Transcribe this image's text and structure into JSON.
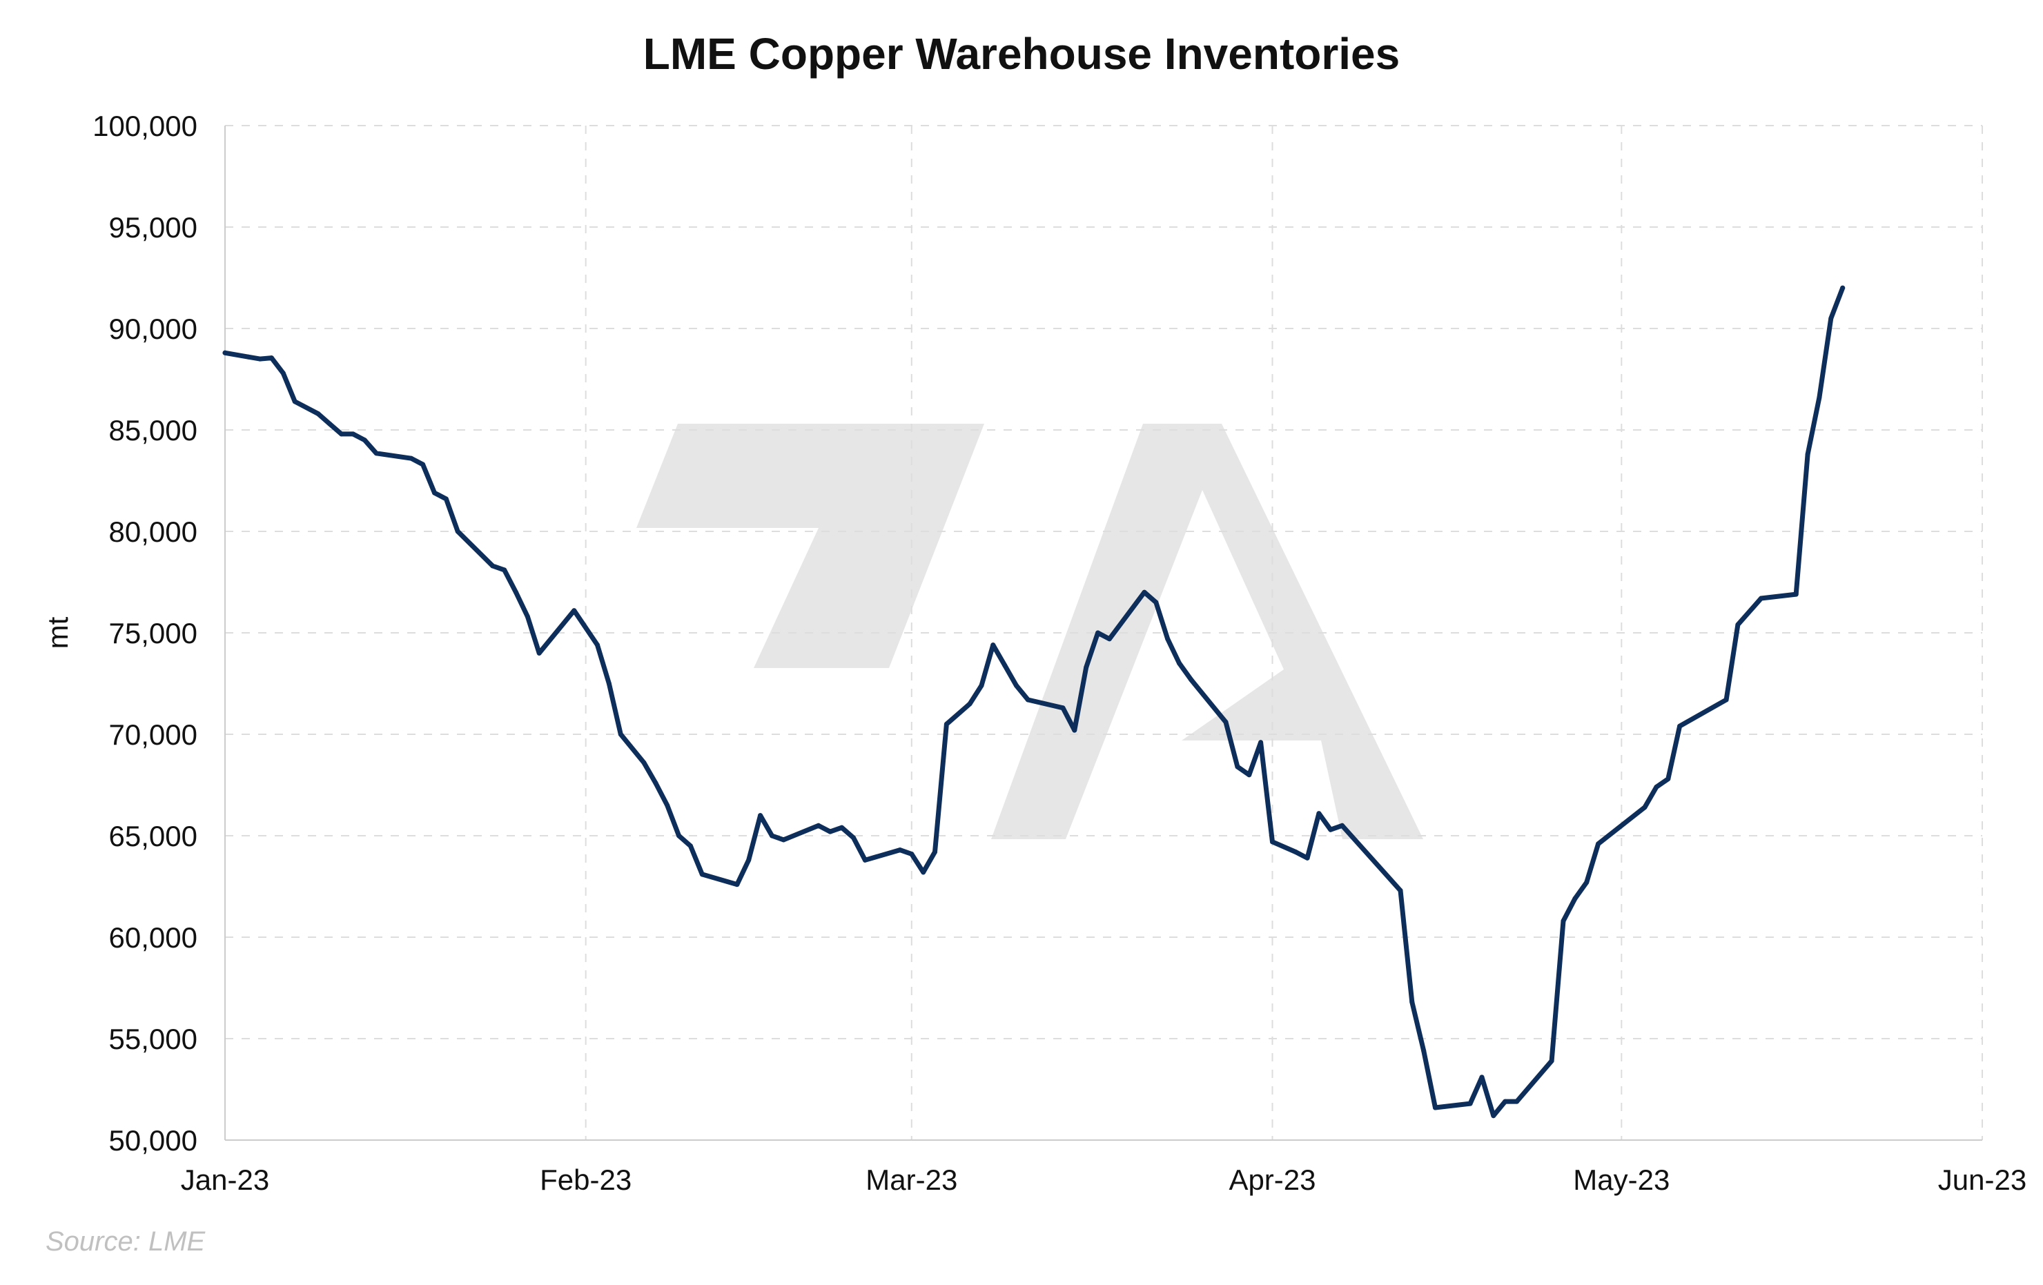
{
  "chart_data": {
    "type": "line",
    "title": "LME Copper Warehouse Inventories",
    "xlabel": "",
    "ylabel": "mt",
    "source": "Source: LME",
    "colors": {
      "line": "#0d2d5a",
      "grid": "#dddddd",
      "watermark": "#e6e6e6"
    },
    "grid": true,
    "ylim": [
      50000,
      100000
    ],
    "y_ticks": [
      50000,
      55000,
      60000,
      65000,
      70000,
      75000,
      80000,
      85000,
      90000,
      95000,
      100000
    ],
    "y_tick_labels": [
      "50,000",
      "55,000",
      "60,000",
      "65,000",
      "70,000",
      "75,000",
      "80,000",
      "85,000",
      "90,000",
      "95,000",
      "100,000"
    ],
    "xlim": [
      "2023-01-01",
      "2023-06-01"
    ],
    "x_ticks": [
      "2023-01-01",
      "2023-02-01",
      "2023-03-01",
      "2023-04-01",
      "2023-05-01",
      "2023-06-01"
    ],
    "x_tick_labels": [
      "Jan-23",
      "Feb-23",
      "Mar-23",
      "Apr-23",
      "May-23",
      "Jun-23"
    ],
    "series": [
      {
        "points": [
          [
            "2023-01-01",
            88800
          ],
          [
            "2023-01-03",
            88600
          ],
          [
            "2023-01-04",
            88500
          ],
          [
            "2023-01-05",
            88550
          ],
          [
            "2023-01-06",
            87800
          ],
          [
            "2023-01-07",
            86400
          ],
          [
            "2023-01-09",
            85800
          ],
          [
            "2023-01-10",
            85300
          ],
          [
            "2023-01-11",
            84800
          ],
          [
            "2023-01-12",
            84800
          ],
          [
            "2023-01-13",
            84500
          ],
          [
            "2023-01-14",
            83850
          ],
          [
            "2023-01-17",
            83600
          ],
          [
            "2023-01-18",
            83300
          ],
          [
            "2023-01-19",
            81900
          ],
          [
            "2023-01-20",
            81600
          ],
          [
            "2023-01-21",
            80000
          ],
          [
            "2023-01-24",
            78300
          ],
          [
            "2023-01-25",
            78100
          ],
          [
            "2023-01-26",
            77000
          ],
          [
            "2023-01-27",
            75800
          ],
          [
            "2023-01-28",
            74000
          ],
          [
            "2023-01-31",
            76100
          ],
          [
            "2023-02-02",
            74400
          ],
          [
            "2023-02-03",
            72500
          ],
          [
            "2023-02-04",
            70000
          ],
          [
            "2023-02-06",
            68600
          ],
          [
            "2023-02-07",
            67600
          ],
          [
            "2023-02-08",
            66500
          ],
          [
            "2023-02-09",
            65000
          ],
          [
            "2023-02-10",
            64500
          ],
          [
            "2023-02-11",
            63100
          ],
          [
            "2023-02-14",
            62600
          ],
          [
            "2023-02-15",
            63800
          ],
          [
            "2023-02-16",
            66000
          ],
          [
            "2023-02-17",
            65000
          ],
          [
            "2023-02-18",
            64800
          ],
          [
            "2023-02-21",
            65500
          ],
          [
            "2023-02-22",
            65200
          ],
          [
            "2023-02-23",
            65400
          ],
          [
            "2023-02-24",
            64900
          ],
          [
            "2023-02-25",
            63800
          ],
          [
            "2023-02-28",
            64300
          ],
          [
            "2023-03-01",
            64100
          ],
          [
            "2023-03-02",
            63200
          ],
          [
            "2023-03-03",
            64200
          ],
          [
            "2023-03-04",
            70500
          ],
          [
            "2023-03-06",
            71500
          ],
          [
            "2023-03-07",
            72400
          ],
          [
            "2023-03-08",
            74400
          ],
          [
            "2023-03-09",
            73400
          ],
          [
            "2023-03-10",
            72400
          ],
          [
            "2023-03-11",
            71700
          ],
          [
            "2023-03-14",
            71300
          ],
          [
            "2023-03-15",
            70200
          ],
          [
            "2023-03-16",
            73300
          ],
          [
            "2023-03-17",
            75000
          ],
          [
            "2023-03-18",
            74700
          ],
          [
            "2023-03-21",
            77000
          ],
          [
            "2023-03-22",
            76500
          ],
          [
            "2023-03-23",
            74700
          ],
          [
            "2023-03-24",
            73500
          ],
          [
            "2023-03-25",
            72700
          ],
          [
            "2023-03-28",
            70600
          ],
          [
            "2023-03-29",
            68400
          ],
          [
            "2023-03-30",
            68000
          ],
          [
            "2023-03-31",
            69600
          ],
          [
            "2023-04-01",
            64700
          ],
          [
            "2023-04-03",
            64200
          ],
          [
            "2023-04-04",
            63900
          ],
          [
            "2023-04-05",
            66100
          ],
          [
            "2023-04-06",
            65300
          ],
          [
            "2023-04-07",
            65500
          ],
          [
            "2023-04-12",
            62300
          ],
          [
            "2023-04-13",
            56800
          ],
          [
            "2023-04-14",
            54400
          ],
          [
            "2023-04-15",
            51600
          ],
          [
            "2023-04-18",
            51800
          ],
          [
            "2023-04-19",
            53100
          ],
          [
            "2023-04-20",
            51200
          ],
          [
            "2023-04-21",
            51900
          ],
          [
            "2023-04-22",
            51900
          ],
          [
            "2023-04-25",
            53900
          ],
          [
            "2023-04-26",
            60800
          ],
          [
            "2023-04-27",
            61900
          ],
          [
            "2023-04-28",
            62700
          ],
          [
            "2023-04-29",
            64600
          ],
          [
            "2023-05-03",
            66400
          ],
          [
            "2023-05-04",
            67400
          ],
          [
            "2023-05-05",
            67800
          ],
          [
            "2023-05-06",
            70400
          ],
          [
            "2023-05-10",
            71700
          ],
          [
            "2023-05-11",
            75400
          ],
          [
            "2023-05-13",
            76700
          ],
          [
            "2023-05-16",
            76900
          ],
          [
            "2023-05-17",
            83800
          ],
          [
            "2023-05-18",
            86600
          ],
          [
            "2023-05-19",
            90500
          ],
          [
            "2023-05-20",
            92000
          ]
        ]
      }
    ]
  }
}
